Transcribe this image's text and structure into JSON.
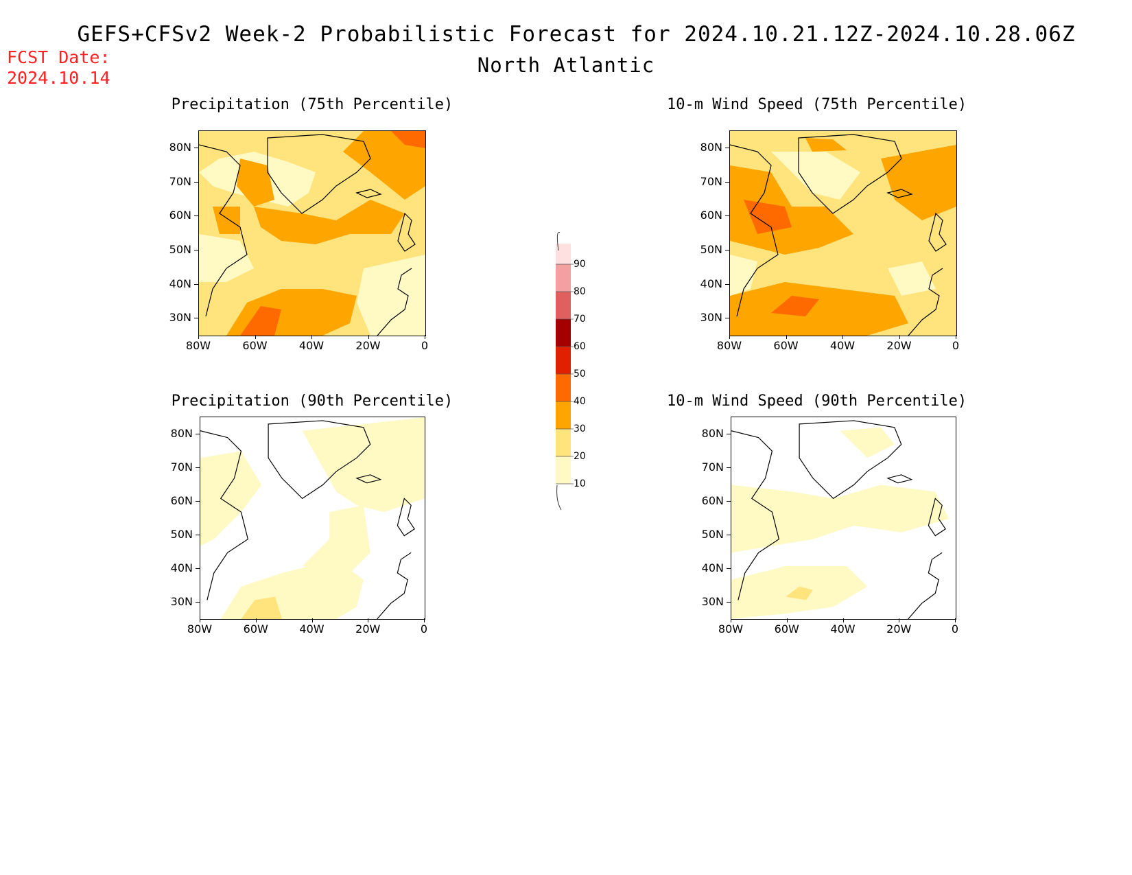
{
  "header": {
    "title": "GEFS+CFSv2 Week-2 Probabilistic Forecast for 2024.10.21.12Z-2024.10.28.06Z",
    "region": "North Atlantic",
    "fcst_label": "FCST Date:",
    "fcst_date": "2024.10.14"
  },
  "colors": {
    "10": "#fff9c4",
    "20": "#ffe37d",
    "30": "#ffa500",
    "40": "#ff6a00",
    "50": "#e02000",
    "60": "#a50000",
    "70": "#e06060",
    "80": "#f5a0a0",
    "90": "#ffe0e0"
  },
  "colorbar": {
    "levels": [
      "10",
      "20",
      "30",
      "40",
      "50",
      "60",
      "70",
      "80",
      "90"
    ]
  },
  "axes": {
    "x_ticks": [
      "80W",
      "60W",
      "40W",
      "20W",
      "0"
    ],
    "y_ticks": [
      "80N",
      "70N",
      "60N",
      "50N",
      "40N",
      "30N"
    ]
  },
  "panels": [
    {
      "id": "p1",
      "title": "Precipitation (75th Percentile)",
      "base_level": "20"
    },
    {
      "id": "p2",
      "title": "10-m Wind Speed (75th Percentile)",
      "base_level": "20"
    },
    {
      "id": "p3",
      "title": "Precipitation (90th Percentile)",
      "base_level": "10"
    },
    {
      "id": "p4",
      "title": "10-m Wind Speed (90th Percentile)",
      "base_level": "10"
    }
  ]
}
